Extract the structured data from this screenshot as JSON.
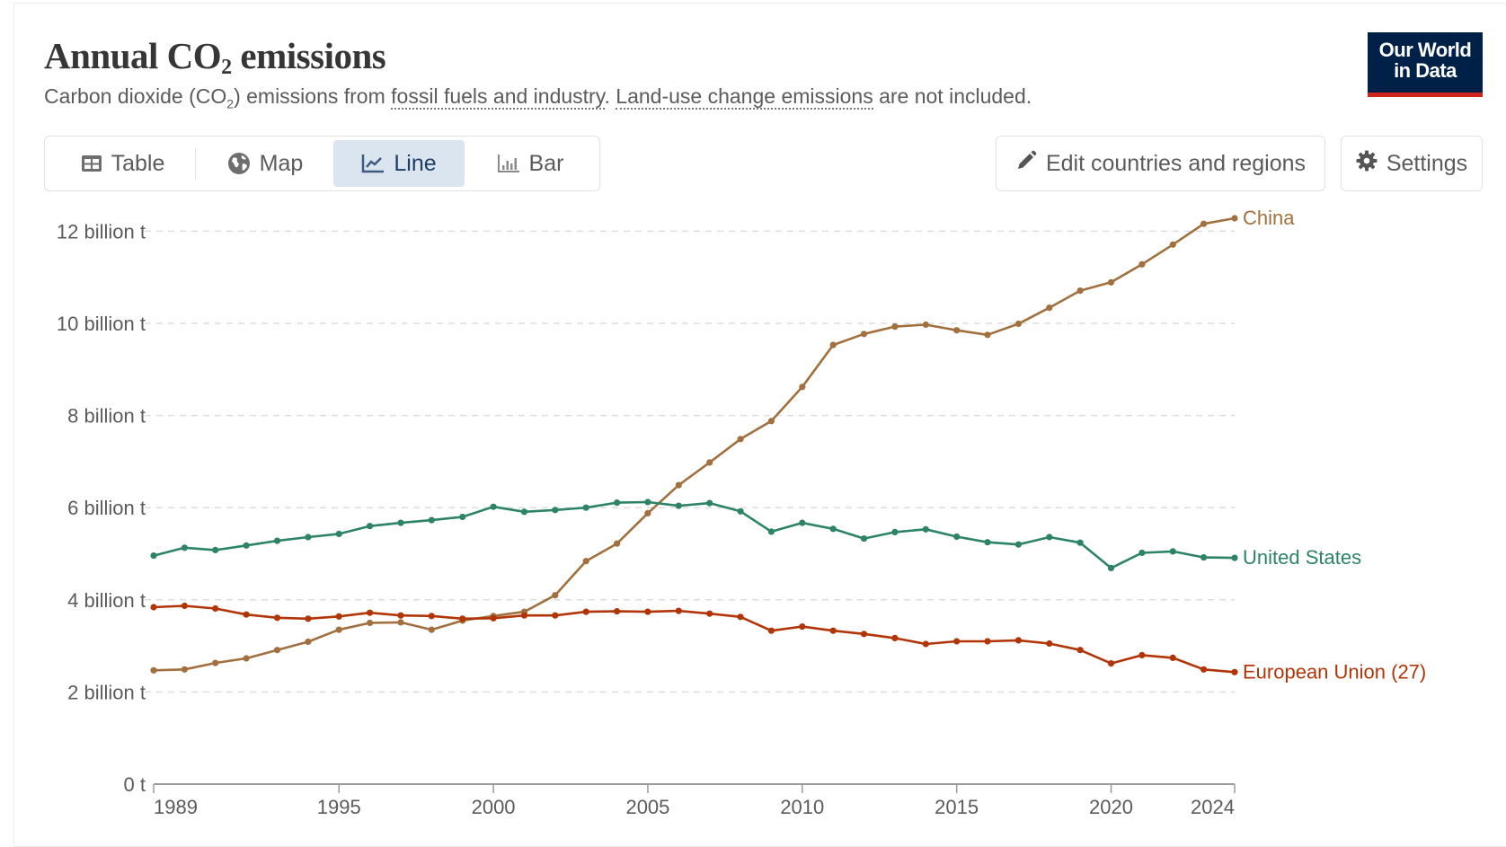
{
  "header": {
    "title_main": "Annual CO",
    "title_sub": "2",
    "title_rest": " emissions",
    "subtitle_part1": "Carbon dioxide (CO",
    "subtitle_sub": "2",
    "subtitle_part2": ") emissions from ",
    "subtitle_link1": "fossil fuels and industry",
    "subtitle_part3": ". ",
    "subtitle_link2": "Land-use change emissions",
    "subtitle_part4": " are not included.",
    "logo_line1": "Our World",
    "logo_line2": "in Data"
  },
  "tabs": [
    {
      "label": "Table",
      "icon": "table-icon",
      "active": false
    },
    {
      "label": "Map",
      "icon": "globe-icon",
      "active": false
    },
    {
      "label": "Line",
      "icon": "line-chart-icon",
      "active": true
    },
    {
      "label": "Bar",
      "icon": "bar-chart-icon",
      "active": false
    }
  ],
  "toolbar": {
    "edit_label": "Edit countries and regions",
    "edit_icon": "pencil-icon",
    "settings_label": "Settings",
    "settings_icon": "gear-icon"
  },
  "colors": {
    "china": "#a2703e",
    "united_states": "#2c8465",
    "european_union": "#b13507",
    "active_tab_bg": "#dbe5f0",
    "logo_bg": "#002147",
    "logo_accent": "#ce261e"
  },
  "chart_data": {
    "type": "line",
    "title": "Annual CO₂ emissions",
    "subtitle": "Carbon dioxide (CO₂) emissions from fossil fuels and industry. Land-use change emissions are not included.",
    "xlabel": "",
    "ylabel": "",
    "unit": "billion t",
    "x": [
      1989,
      1990,
      1991,
      1992,
      1993,
      1994,
      1995,
      1996,
      1997,
      1998,
      1999,
      2000,
      2001,
      2002,
      2003,
      2004,
      2005,
      2006,
      2007,
      2008,
      2009,
      2010,
      2011,
      2012,
      2013,
      2014,
      2015,
      2016,
      2017,
      2018,
      2019,
      2020,
      2021,
      2022,
      2023,
      2024
    ],
    "xlim": [
      1989,
      2024
    ],
    "ylim": [
      0,
      12
    ],
    "xticks": [
      1989,
      1995,
      2000,
      2005,
      2010,
      2015,
      2020,
      2024
    ],
    "xtick_labels": [
      "1989",
      "1995",
      "2000",
      "2005",
      "2010",
      "2015",
      "2020",
      "2024"
    ],
    "yticks": [
      0,
      2,
      4,
      6,
      8,
      10,
      12
    ],
    "ytick_labels": [
      "0 t",
      "2 billion t",
      "4 billion t",
      "6 billion t",
      "8 billion t",
      "10 billion t",
      "12 billion t"
    ],
    "grid": "horizontal-dashed",
    "legend": "inline-right",
    "series": [
      {
        "name": "China",
        "color_key": "china",
        "values": [
          2.47,
          2.49,
          2.63,
          2.73,
          2.91,
          3.09,
          3.35,
          3.5,
          3.51,
          3.35,
          3.55,
          3.65,
          3.74,
          4.1,
          4.84,
          5.22,
          5.88,
          6.49,
          6.98,
          7.49,
          7.88,
          8.62,
          9.53,
          9.77,
          9.93,
          9.97,
          9.85,
          9.75,
          9.99,
          10.34,
          10.71,
          10.89,
          11.28,
          11.71,
          12.16,
          12.28
        ]
      },
      {
        "name": "United States",
        "color_key": "united_states",
        "values": [
          4.96,
          5.13,
          5.08,
          5.18,
          5.28,
          5.36,
          5.43,
          5.6,
          5.67,
          5.73,
          5.8,
          6.02,
          5.91,
          5.95,
          6.0,
          6.11,
          6.12,
          6.04,
          6.1,
          5.92,
          5.48,
          5.67,
          5.54,
          5.33,
          5.47,
          5.53,
          5.37,
          5.25,
          5.2,
          5.36,
          5.24,
          4.69,
          5.02,
          5.05,
          4.92,
          4.91
        ]
      },
      {
        "name": "European Union (27)",
        "color_key": "european_union",
        "values": [
          3.84,
          3.87,
          3.81,
          3.68,
          3.61,
          3.59,
          3.64,
          3.72,
          3.66,
          3.65,
          3.59,
          3.6,
          3.66,
          3.66,
          3.74,
          3.75,
          3.74,
          3.76,
          3.7,
          3.63,
          3.33,
          3.42,
          3.33,
          3.26,
          3.17,
          3.04,
          3.1,
          3.1,
          3.12,
          3.05,
          2.91,
          2.62,
          2.8,
          2.74,
          2.49,
          2.43
        ]
      }
    ]
  }
}
